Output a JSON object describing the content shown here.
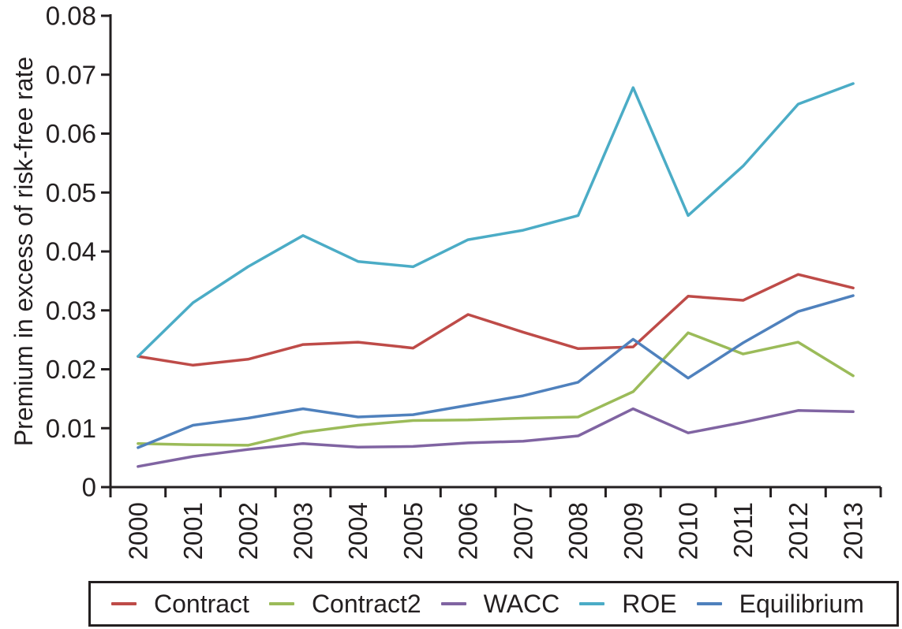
{
  "figure": {
    "background": "#ffffff",
    "axis_color": "#231f20",
    "text_color": "#231f20"
  },
  "chart_data": {
    "type": "line",
    "title": "",
    "xlabel": "",
    "ylabel": "Premium in excess of risk-free rate",
    "ylim": [
      0,
      0.08
    ],
    "y_ticks": [
      0,
      0.01,
      0.02,
      0.03,
      0.04,
      0.05,
      0.06,
      0.07,
      0.08
    ],
    "y_tick_labels": [
      "0",
      "0.01",
      "0.02",
      "0.03",
      "0.04",
      "0.05",
      "0.06",
      "0.07",
      "0.08"
    ],
    "categories": [
      "2000",
      "2001",
      "2002",
      "2003",
      "2004",
      "2005",
      "2006",
      "2007",
      "2008",
      "2009",
      "2010",
      "2011",
      "2012",
      "2013"
    ],
    "grid": false,
    "legend_position": "bottom",
    "series": [
      {
        "name": "Contract",
        "color": "#be4b48",
        "values": [
          0.0222,
          0.0207,
          0.0217,
          0.0242,
          0.0246,
          0.0236,
          0.0293,
          0.0263,
          0.0235,
          0.0238,
          0.0324,
          0.0317,
          0.0361,
          0.0338
        ]
      },
      {
        "name": "Contract2",
        "color": "#9bbb59",
        "values": [
          0.0074,
          0.0072,
          0.0071,
          0.0093,
          0.0105,
          0.0113,
          0.0114,
          0.0117,
          0.0119,
          0.0162,
          0.0262,
          0.0226,
          0.0246,
          0.0189
        ]
      },
      {
        "name": "WACC",
        "color": "#8064a2",
        "values": [
          0.0035,
          0.0052,
          0.0064,
          0.0074,
          0.0068,
          0.0069,
          0.0075,
          0.0078,
          0.0087,
          0.0133,
          0.0092,
          0.011,
          0.013,
          0.0128
        ]
      },
      {
        "name": "ROE",
        "color": "#4bacc6",
        "values": [
          0.0222,
          0.0313,
          0.0374,
          0.0427,
          0.0383,
          0.0374,
          0.042,
          0.0436,
          0.0461,
          0.0678,
          0.0461,
          0.0545,
          0.065,
          0.0685
        ]
      },
      {
        "name": "Equilibrium",
        "color": "#4f81bd",
        "values": [
          0.0067,
          0.0105,
          0.0117,
          0.0133,
          0.0119,
          0.0123,
          0.0139,
          0.0155,
          0.0178,
          0.0251,
          0.0185,
          0.0245,
          0.0298,
          0.0325
        ]
      }
    ]
  }
}
